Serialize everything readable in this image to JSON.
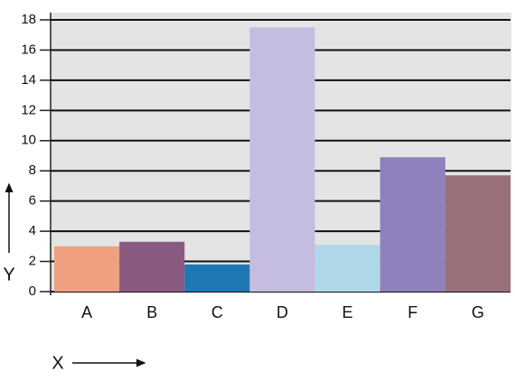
{
  "chart_data": {
    "type": "bar",
    "categories": [
      "A",
      "B",
      "C",
      "D",
      "E",
      "F",
      "G"
    ],
    "values": [
      3,
      3.3,
      1.8,
      17.5,
      3.1,
      8.9,
      7.7
    ],
    "colors": [
      "#f0a080",
      "#8a5a80",
      "#1f78b4",
      "#c5bde0",
      "#b0d8e8",
      "#9080bb",
      "#9a707a"
    ],
    "xlabel": "X",
    "ylabel": "Y",
    "ylim": [
      0,
      18
    ],
    "yticks": [
      0,
      2,
      4,
      6,
      8,
      10,
      12,
      14,
      16,
      18
    ],
    "grid": true
  }
}
